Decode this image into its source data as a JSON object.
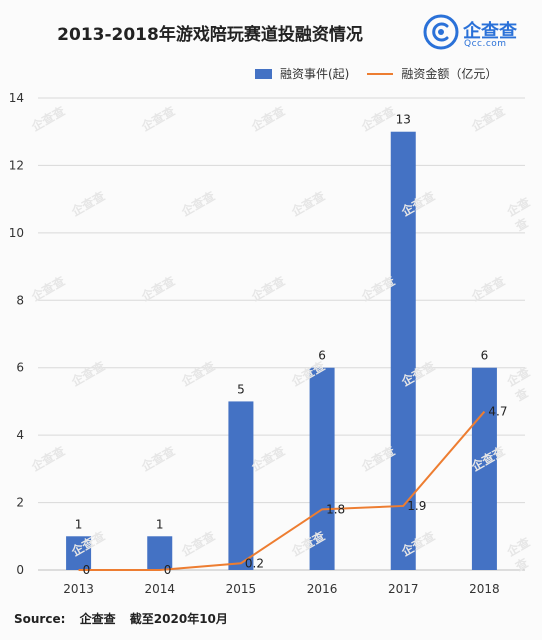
{
  "brand": {
    "name": "企查查",
    "domain": "Qcc.com"
  },
  "footer": {
    "source_label": "Source:",
    "source_name": "企查查",
    "cutoff": "截至2020年10月"
  },
  "watermark": "企查查",
  "colors": {
    "bar": "#4472c4",
    "line": "#ed7d31"
  },
  "chart_data": {
    "type": "bar",
    "title": "2013-2018年游戏陪玩赛道投融资情况",
    "xlabel": "",
    "ylabel": "",
    "categories": [
      "2013",
      "2014",
      "2015",
      "2016",
      "2017",
      "2018"
    ],
    "ylim": [
      0,
      14
    ],
    "yticks": [
      0,
      2,
      4,
      6,
      8,
      10,
      12,
      14
    ],
    "grid": true,
    "legend_position": "top-right",
    "series": [
      {
        "name": "融资事件(起)",
        "type": "bar",
        "values": [
          1,
          1,
          5,
          6,
          13,
          6
        ],
        "labels": [
          "1",
          "1",
          "5",
          "6",
          "13",
          "6"
        ]
      },
      {
        "name": "融资金额（亿元）",
        "type": "line",
        "values": [
          0,
          0,
          0.2,
          1.8,
          1.9,
          4.7
        ],
        "labels": [
          "0",
          "0",
          "0.2",
          "1.8",
          "1.9",
          "4.7"
        ]
      }
    ]
  }
}
